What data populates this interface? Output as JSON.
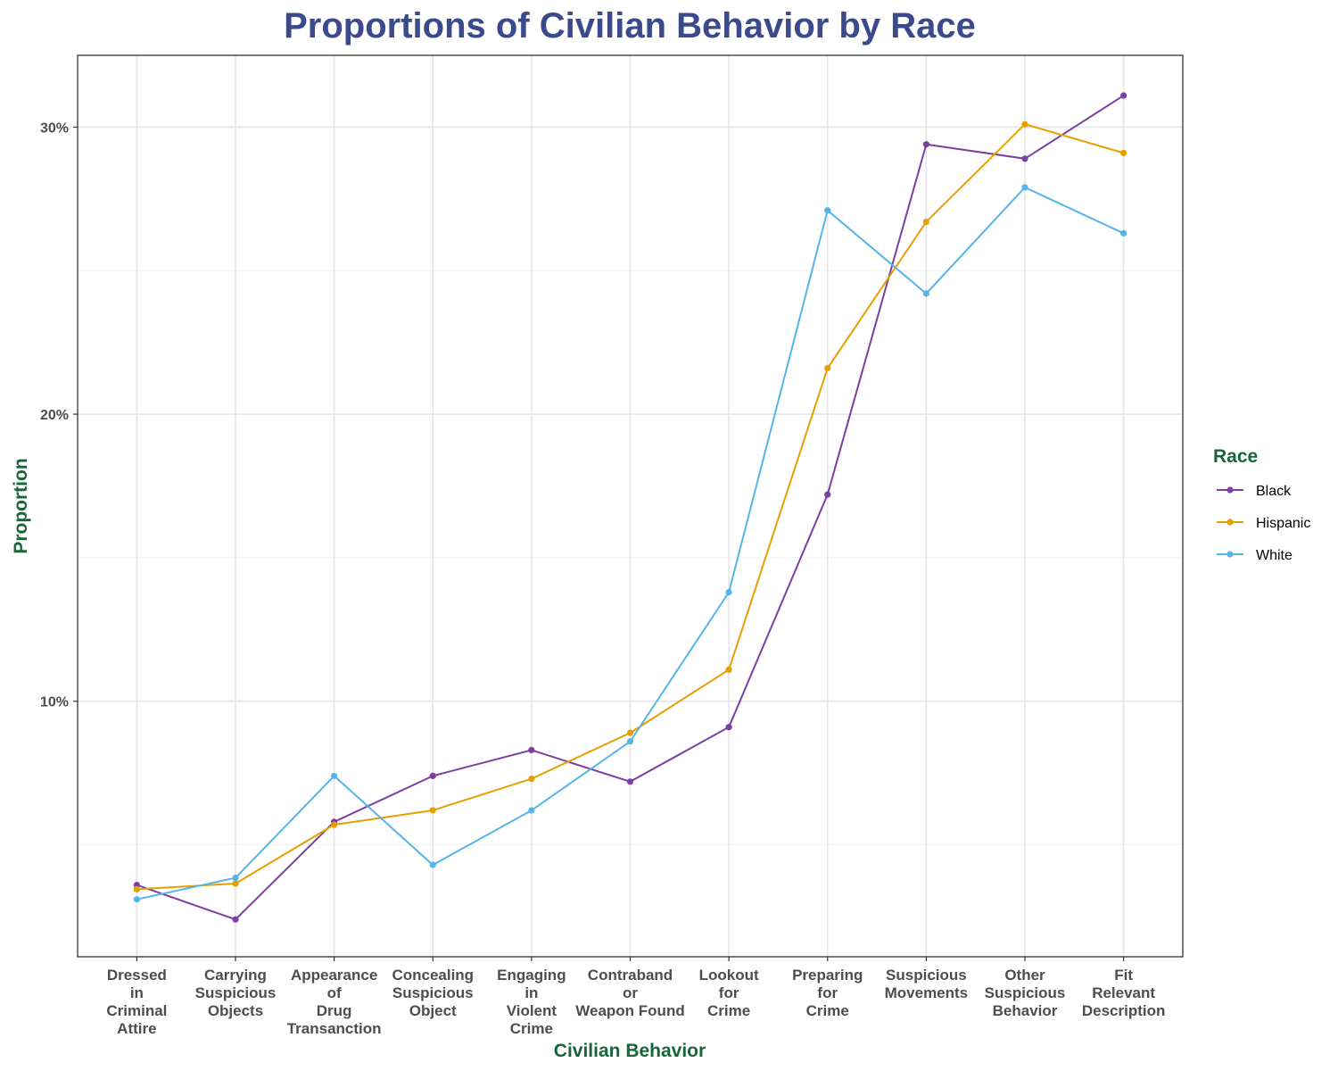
{
  "chart_data": {
    "type": "line",
    "title": "Proportions of Civilian Behavior by Race",
    "xlabel": "Civilian Behavior",
    "ylabel": "Proportion",
    "categories": [
      "Dressed in Criminal Attire",
      "Carrying Suspicious Objects",
      "Appearance of Drug Transanction",
      "Concealing Suspicious Object",
      "Engaging in Violent Crime",
      "Contraband or Weapon Found",
      "Lookout for Crime",
      "Preparing for Crime",
      "Suspicious Movements",
      "Other Suspicious Behavior",
      "Fit Relevant Description"
    ],
    "category_lines": [
      [
        "Dressed",
        "in",
        "Criminal",
        "Attire"
      ],
      [
        "Carrying",
        "Suspicious",
        "Objects"
      ],
      [
        "Appearance",
        "of",
        "Drug",
        "Transanction"
      ],
      [
        "Concealing",
        "Suspicious",
        "Object"
      ],
      [
        "Engaging",
        "in",
        "Violent",
        "Crime"
      ],
      [
        "Contraband",
        "or",
        "Weapon Found"
      ],
      [
        "Lookout",
        "for",
        "Crime"
      ],
      [
        "Preparing",
        "for",
        "Crime"
      ],
      [
        "Suspicious",
        "Movements"
      ],
      [
        "Other",
        "Suspicious",
        "Behavior"
      ],
      [
        "Fit",
        "Relevant",
        "Description"
      ]
    ],
    "series": [
      {
        "name": "Black",
        "color": "#7b3fa0",
        "values": [
          3.6,
          2.4,
          5.8,
          7.4,
          8.3,
          7.2,
          9.1,
          17.2,
          29.4,
          28.9,
          31.1
        ]
      },
      {
        "name": "Hispanic",
        "color": "#e69f00",
        "values": [
          3.45,
          3.65,
          5.7,
          6.2,
          7.3,
          8.9,
          11.1,
          21.6,
          26.7,
          30.1,
          29.1
        ]
      },
      {
        "name": "White",
        "color": "#56b4e9",
        "values": [
          3.1,
          3.85,
          7.4,
          4.3,
          6.2,
          8.6,
          13.8,
          27.1,
          24.2,
          27.9,
          26.3
        ]
      }
    ],
    "ylim": [
      1.1,
      32.5
    ],
    "yticks": [
      10,
      20,
      30
    ],
    "ytick_labels": [
      "10%",
      "20%",
      "30%"
    ],
    "grid": true,
    "legend": {
      "title": "Race",
      "position": "right"
    },
    "title_color": "#3a4a8c",
    "axis_title_color": "#17663a"
  }
}
